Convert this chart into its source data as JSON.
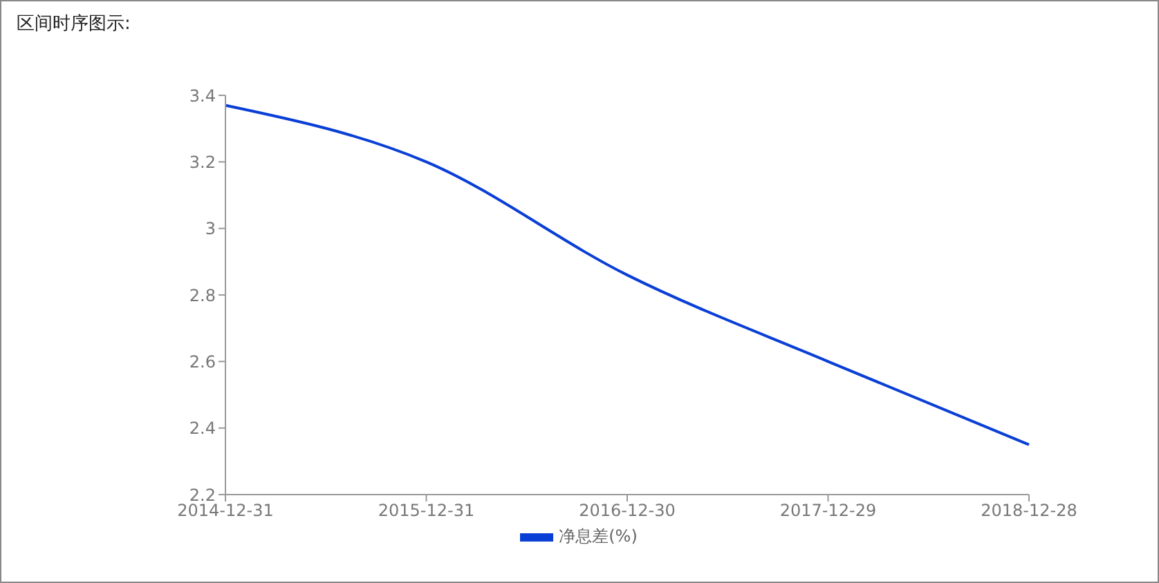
{
  "chart_data": {
    "type": "line",
    "title": "区间时序图示:",
    "categories": [
      "2014-12-31",
      "2015-12-31",
      "2016-12-30",
      "2017-12-29",
      "2018-12-28"
    ],
    "series": [
      {
        "name": "净息差(%)",
        "color": "#0a3fd6",
        "values": [
          3.37,
          3.2,
          2.86,
          2.6,
          2.35
        ]
      }
    ],
    "ylim": [
      2.2,
      3.4
    ],
    "yticks": [
      2.2,
      2.4,
      2.6,
      2.8,
      3,
      3.2,
      3.4
    ],
    "grid": false,
    "legend": "bottom",
    "marker": "none",
    "line_style": "solid"
  }
}
